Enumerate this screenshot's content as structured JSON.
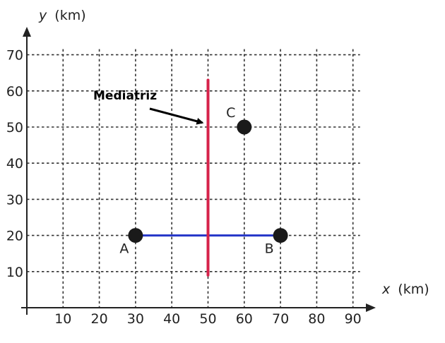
{
  "chart_data": {
    "type": "scatter",
    "title": "",
    "xlabel": {
      "var": "x",
      "unit": "(km)"
    },
    "ylabel": {
      "var": "y",
      "unit": "(km)"
    },
    "xlim": [
      0,
      90
    ],
    "ylim": [
      0,
      70
    ],
    "xticks": [
      10,
      20,
      30,
      40,
      50,
      60,
      70,
      80,
      90
    ],
    "yticks": [
      10,
      20,
      30,
      40,
      50,
      60,
      70
    ],
    "grid": true,
    "points": [
      {
        "label": "A",
        "x": 30,
        "y": 20
      },
      {
        "label": "B",
        "x": 70,
        "y": 20
      },
      {
        "label": "C",
        "x": 60,
        "y": 50
      }
    ],
    "segments": [
      {
        "from": [
          30,
          20
        ],
        "to": [
          70,
          20
        ],
        "color": "#2436c8"
      },
      {
        "from": [
          50,
          9
        ],
        "to": [
          50,
          63
        ],
        "color": "#d6224a"
      }
    ],
    "annotation": {
      "text": "Mediatriz",
      "points_to": [
        50,
        51
      ]
    },
    "colors": {
      "grid": "#333333",
      "axis": "#222222",
      "point": "#1a1a1a"
    }
  }
}
